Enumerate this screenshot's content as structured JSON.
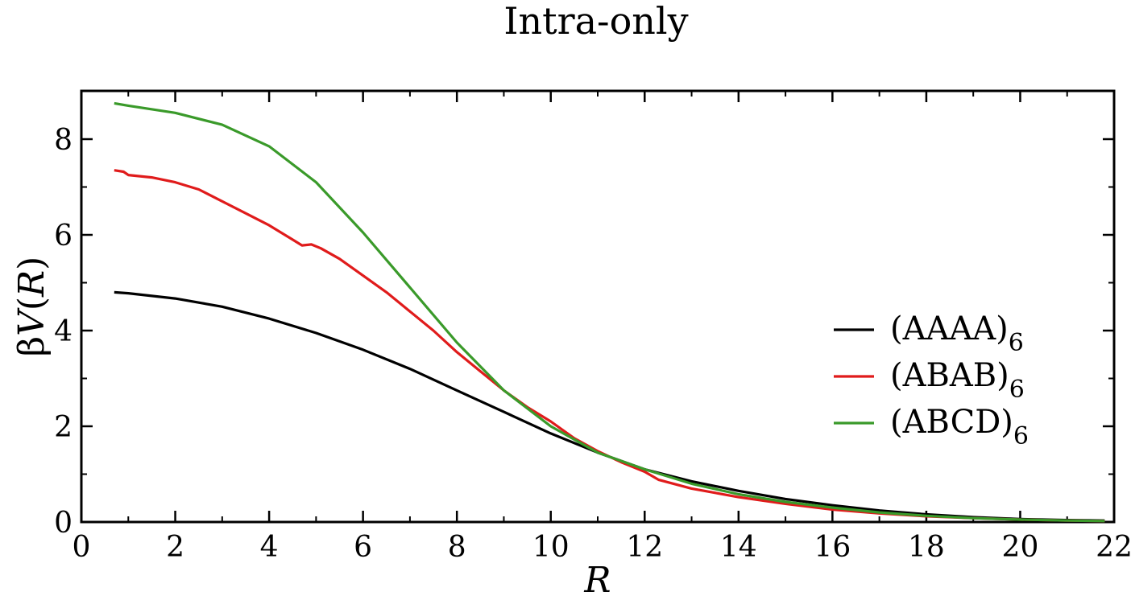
{
  "chart_data": {
    "type": "line",
    "title": "Intra-only",
    "xlabel": "R",
    "ylabel_prefix": "β",
    "ylabel_var": "V",
    "ylabel_open": "(",
    "ylabel_arg": "R",
    "ylabel_close": ")",
    "xlim": [
      0,
      22
    ],
    "ylim": [
      0,
      9
    ],
    "xticks": [
      0,
      2,
      4,
      6,
      8,
      10,
      12,
      14,
      16,
      18,
      20,
      22
    ],
    "yticks": [
      0,
      2,
      4,
      6,
      8
    ],
    "xtick_labels": [
      "0",
      "2",
      "4",
      "6",
      "8",
      "10",
      "12",
      "14",
      "16",
      "18",
      "20",
      "22"
    ],
    "ytick_labels": [
      "0",
      "2",
      "4",
      "6",
      "8"
    ],
    "grid": false,
    "legend_position": "right",
    "series": [
      {
        "name": "(AAAA)",
        "legend_main": "(AAAA)",
        "legend_sub": "6",
        "color": "#000000",
        "x": [
          0.7,
          1,
          2,
          3,
          4,
          5,
          6,
          7,
          8,
          9,
          10,
          11,
          12,
          13,
          14,
          15,
          16,
          17,
          18,
          19,
          20,
          21,
          21.8
        ],
        "y": [
          4.8,
          4.78,
          4.67,
          4.5,
          4.25,
          3.95,
          3.6,
          3.2,
          2.75,
          2.3,
          1.85,
          1.45,
          1.1,
          0.85,
          0.65,
          0.48,
          0.35,
          0.24,
          0.16,
          0.1,
          0.06,
          0.04,
          0.03
        ]
      },
      {
        "name": "(ABAB)",
        "legend_main": "(ABAB)",
        "legend_sub": "6",
        "color": "#e01b1b",
        "x": [
          0.7,
          0.9,
          1.0,
          1.5,
          2,
          2.5,
          3,
          3.5,
          4,
          4.5,
          4.7,
          4.9,
          5.1,
          5.5,
          6,
          6.5,
          7,
          7.5,
          8,
          8.5,
          9,
          9.5,
          10,
          10.5,
          11,
          11.5,
          12,
          12.3,
          13,
          14,
          15,
          16,
          17,
          18,
          19,
          20,
          21,
          21.8
        ],
        "y": [
          7.35,
          7.32,
          7.25,
          7.2,
          7.1,
          6.95,
          6.7,
          6.45,
          6.2,
          5.9,
          5.78,
          5.8,
          5.72,
          5.5,
          5.15,
          4.8,
          4.4,
          4.0,
          3.55,
          3.15,
          2.75,
          2.4,
          2.1,
          1.75,
          1.48,
          1.25,
          1.05,
          0.88,
          0.7,
          0.52,
          0.38,
          0.26,
          0.18,
          0.12,
          0.08,
          0.05,
          0.03,
          0.02
        ]
      },
      {
        "name": "(ABCD)",
        "legend_main": "(ABCD)",
        "legend_sub": "6",
        "color": "#3a9a2a",
        "x": [
          0.7,
          1,
          2,
          3,
          4,
          5,
          6,
          7,
          8,
          9,
          10,
          11,
          12,
          13,
          14,
          15,
          16,
          17,
          18,
          19,
          20,
          21,
          21.8
        ],
        "y": [
          8.75,
          8.7,
          8.55,
          8.3,
          7.85,
          7.1,
          6.05,
          4.9,
          3.75,
          2.75,
          2.0,
          1.45,
          1.1,
          0.8,
          0.58,
          0.42,
          0.3,
          0.2,
          0.13,
          0.08,
          0.05,
          0.03,
          0.02
        ]
      }
    ]
  }
}
